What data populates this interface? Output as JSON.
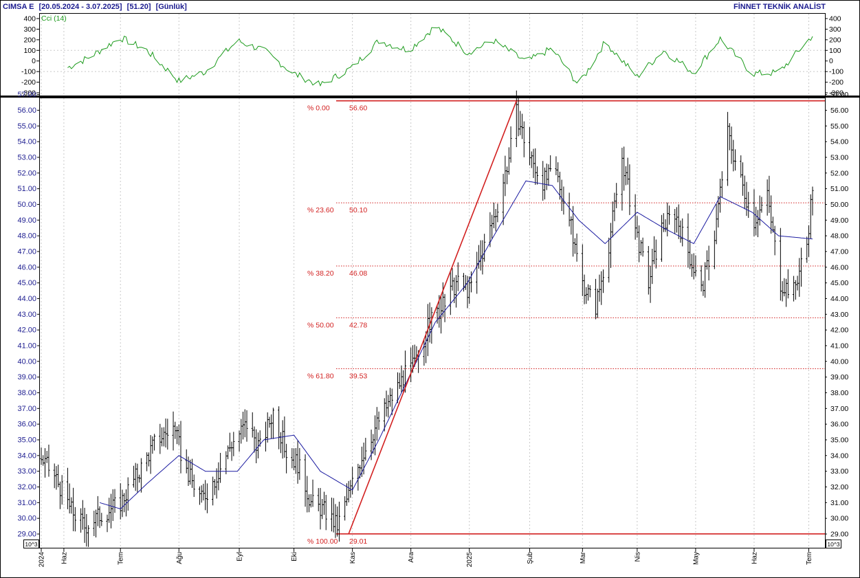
{
  "header": {
    "ticker": "CIMSA E",
    "range": "[20.05.2024 - 3.07.2025]",
    "last": "[51.20]",
    "period": "[Günlük]",
    "brand": "FİNNET TEKNİK ANALİST"
  },
  "colors": {
    "price_bars": "#000000",
    "moving_average": "#1a1aa0",
    "cci_line": "#1a9a1a",
    "fibonacci": "#d22020",
    "title": "#1b1b8f"
  },
  "chart_data": [
    {
      "type": "line",
      "role": "indicator",
      "title": "Cci (14)",
      "ylim": [
        -300,
        400
      ],
      "yticks": [
        400,
        300,
        200,
        100,
        0,
        -100,
        -200,
        -300
      ],
      "grid": true,
      "x": [
        "2024-06-01",
        "2024-06-15",
        "2024-07-01",
        "2024-07-15",
        "2024-08-01",
        "2024-08-15",
        "2024-09-01",
        "2024-09-15",
        "2024-10-01",
        "2024-10-15",
        "2024-11-01",
        "2024-11-15",
        "2024-12-01",
        "2024-12-15",
        "2025-01-01",
        "2025-01-15",
        "2025-02-01",
        "2025-02-15",
        "2025-03-01",
        "2025-03-15",
        "2025-04-01",
        "2025-04-15",
        "2025-05-01",
        "2025-05-15",
        "2025-06-01",
        "2025-06-15",
        "2025-07-03"
      ],
      "values": [
        -80,
        40,
        220,
        100,
        -190,
        -100,
        190,
        100,
        -120,
        -230,
        -60,
        190,
        100,
        330,
        80,
        190,
        -10,
        120,
        -230,
        180,
        -150,
        100,
        -110,
        210,
        -120,
        -110,
        240
      ]
    },
    {
      "type": "bar",
      "role": "price",
      "subtype": "ohlc",
      "ylim": [
        28.5,
        57.0
      ],
      "yticks": [
        57.0,
        56.0,
        55.0,
        54.0,
        53.0,
        52.0,
        51.0,
        50.0,
        49.0,
        48.0,
        47.0,
        46.0,
        45.0,
        44.0,
        43.0,
        42.0,
        41.0,
        40.0,
        39.0,
        38.0,
        37.0,
        36.0,
        35.0,
        34.0,
        33.0,
        32.0,
        31.0,
        30.0,
        29.0
      ],
      "ytick_labels": [
        "57.00",
        "56.00",
        "55.00",
        "54.00",
        "53.00",
        "52.00",
        "51.00",
        "50.00",
        "49.00",
        "48.00",
        "47.00",
        "46.00",
        "45.00",
        "44.00",
        "43.00",
        "42.00",
        "41.00",
        "40.00",
        "39.00",
        "38.00",
        "37.00",
        "36.00",
        "35.00",
        "34.00",
        "33.00",
        "32.00",
        "31.00",
        "30.00",
        "29.00"
      ],
      "scale_note": "10^3",
      "grid": true,
      "x_start": "2024-05-20",
      "x_end": "2025-07-03",
      "x_ticks": [
        {
          "date": "2024-05-20",
          "label": "2024"
        },
        {
          "date": "2024-06-01",
          "label": "Haz"
        },
        {
          "date": "2024-07-01",
          "label": "Tem"
        },
        {
          "date": "2024-08-01",
          "label": "Ağu"
        },
        {
          "date": "2024-09-02",
          "label": "Eyl"
        },
        {
          "date": "2024-10-01",
          "label": "Eki"
        },
        {
          "date": "2024-11-01",
          "label": "Kas"
        },
        {
          "date": "2024-12-02",
          "label": "Ara"
        },
        {
          "date": "2025-01-02",
          "label": "2025"
        },
        {
          "date": "2025-02-03",
          "label": "Şub"
        },
        {
          "date": "2025-03-03",
          "label": "Mar"
        },
        {
          "date": "2025-04-01",
          "label": "Nis"
        },
        {
          "date": "2025-05-02",
          "label": "May"
        },
        {
          "date": "2025-06-02",
          "label": "Haz"
        },
        {
          "date": "2025-07-01",
          "label": "Tem"
        }
      ],
      "close_path": {
        "x": [
          "2024-05-20",
          "2024-05-28",
          "2024-06-05",
          "2024-06-12",
          "2024-06-20",
          "2024-07-01",
          "2024-07-10",
          "2024-07-20",
          "2024-07-29",
          "2024-08-05",
          "2024-08-13",
          "2024-08-20",
          "2024-08-29",
          "2024-09-06",
          "2024-09-13",
          "2024-09-20",
          "2024-09-27",
          "2024-10-03",
          "2024-10-10",
          "2024-10-17",
          "2024-10-24",
          "2024-10-30",
          "2024-11-06",
          "2024-11-14",
          "2024-11-21",
          "2024-11-28",
          "2024-12-05",
          "2024-12-12",
          "2024-12-19",
          "2024-12-26",
          "2025-01-02",
          "2025-01-09",
          "2025-01-16",
          "2025-01-23",
          "2025-01-27",
          "2025-02-03",
          "2025-02-10",
          "2025-02-17",
          "2025-02-24",
          "2025-03-03",
          "2025-03-10",
          "2025-03-17",
          "2025-03-24",
          "2025-03-31",
          "2025-04-07",
          "2025-04-14",
          "2025-04-21",
          "2025-04-28",
          "2025-05-05",
          "2025-05-12",
          "2025-05-19",
          "2025-05-26",
          "2025-06-02",
          "2025-06-09",
          "2025-06-16",
          "2025-06-23",
          "2025-06-30",
          "2025-07-03"
        ],
        "values": [
          33.8,
          32.5,
          30.5,
          29.5,
          30.2,
          31.0,
          32.8,
          35.0,
          35.8,
          33.0,
          31.2,
          32.5,
          34.8,
          36.0,
          34.5,
          36.8,
          34.2,
          33.5,
          31.0,
          30.5,
          29.5,
          31.5,
          34.0,
          36.0,
          37.5,
          39.0,
          40.0,
          42.5,
          43.5,
          45.0,
          44.5,
          47.0,
          49.5,
          53.0,
          55.8,
          53.0,
          51.5,
          52.0,
          49.0,
          45.0,
          43.5,
          47.5,
          53.0,
          48.5,
          45.0,
          48.5,
          49.5,
          47.0,
          44.5,
          48.0,
          54.5,
          51.5,
          49.0,
          50.5,
          45.0,
          44.5,
          47.5,
          51.2
        ]
      },
      "moving_average": {
        "x": [
          "2024-06-20",
          "2024-07-01",
          "2024-07-15",
          "2024-08-01",
          "2024-08-15",
          "2024-09-01",
          "2024-09-15",
          "2024-10-01",
          "2024-10-15",
          "2024-11-01",
          "2024-11-15",
          "2024-12-01",
          "2024-12-15",
          "2025-01-01",
          "2025-01-15",
          "2025-02-01",
          "2025-02-15",
          "2025-03-01",
          "2025-03-15",
          "2025-04-01",
          "2025-04-15",
          "2025-05-01",
          "2025-05-15",
          "2025-06-01",
          "2025-06-15",
          "2025-07-03"
        ],
        "values": [
          31.0,
          30.6,
          32.2,
          34.0,
          33.0,
          33.0,
          35.0,
          35.3,
          33.0,
          31.8,
          35.0,
          39.0,
          42.5,
          45.0,
          48.0,
          51.5,
          51.2,
          49.0,
          47.5,
          49.5,
          48.5,
          47.5,
          50.5,
          49.5,
          48.0,
          47.8
        ]
      }
    }
  ],
  "fibonacci": {
    "levels": [
      {
        "pct": "% 0.00",
        "value_label": "56.60",
        "value": 56.6
      },
      {
        "pct": "% 23.60",
        "value_label": "50.10",
        "value": 50.1
      },
      {
        "pct": "% 38.20",
        "value_label": "46.08",
        "value": 46.08
      },
      {
        "pct": "% 50.00",
        "value_label": "42.78",
        "value": 42.78
      },
      {
        "pct": "% 61.80",
        "value_label": "39.53",
        "value": 39.53
      },
      {
        "pct": "% 100.00",
        "value_label": "29.01",
        "value": 29.01
      }
    ],
    "low_date": "2024-10-30",
    "high_date": "2025-01-27"
  }
}
